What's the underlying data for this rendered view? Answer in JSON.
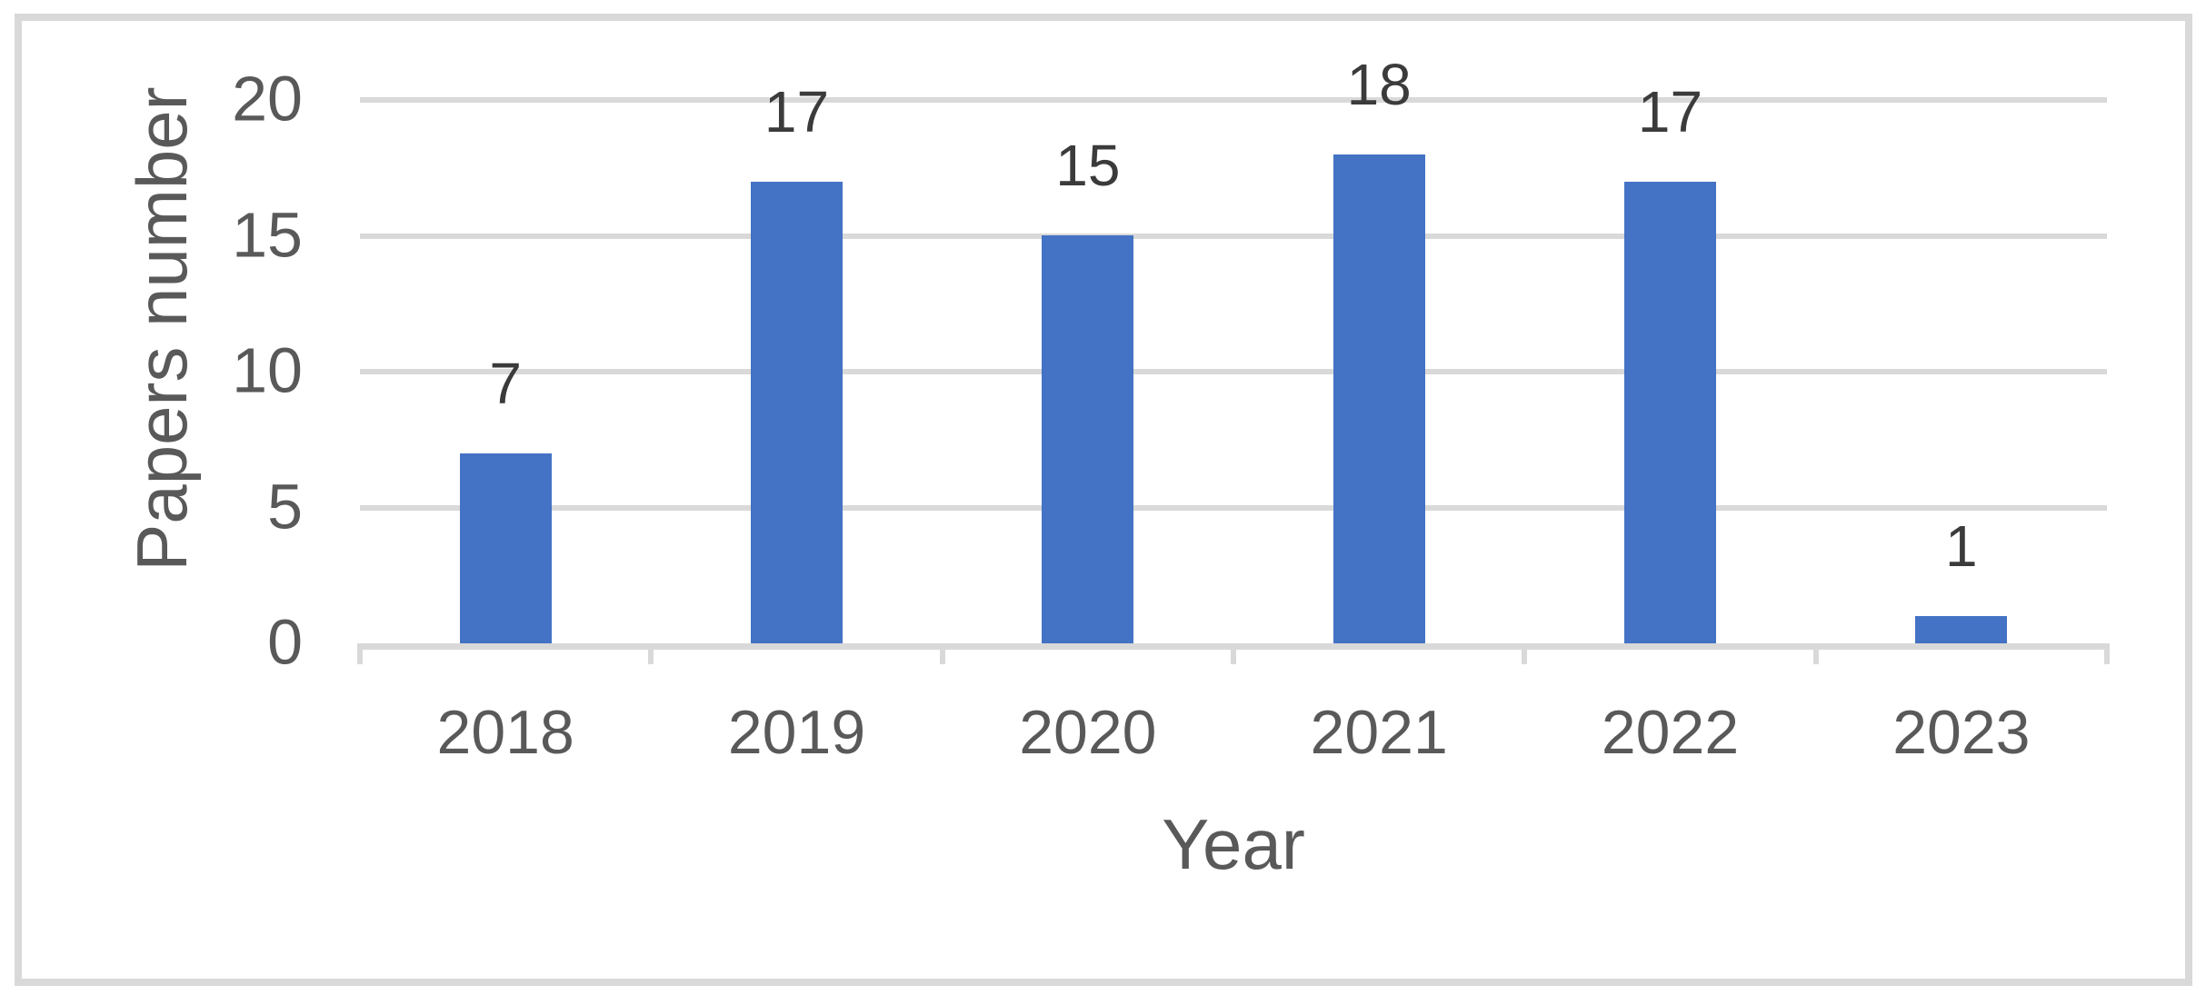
{
  "chart_data": {
    "type": "bar",
    "title": "",
    "categories": [
      "2018",
      "2019",
      "2020",
      "2021",
      "2022",
      "2023"
    ],
    "values": [
      7,
      17,
      15,
      18,
      17,
      1
    ],
    "data_labels": [
      "7",
      "17",
      "15",
      "18",
      "17",
      "1"
    ],
    "xlabel": "Year",
    "ylabel": "Papers number",
    "yticks": [
      0,
      5,
      10,
      15,
      20
    ],
    "ytick_labels": [
      "0",
      "5",
      "10",
      "15",
      "20"
    ],
    "ylim": [
      0,
      20
    ],
    "grid": "horizontal",
    "legend": "none",
    "colors": {
      "bar_fill": "#4472C4",
      "gridline": "#D9D9D9",
      "axis_line": "#D9D9D9",
      "frame_border": "#D9D9D9",
      "axis_text": "#595959",
      "data_label_text": "#3B3B3B",
      "background": "#FFFFFF"
    }
  }
}
